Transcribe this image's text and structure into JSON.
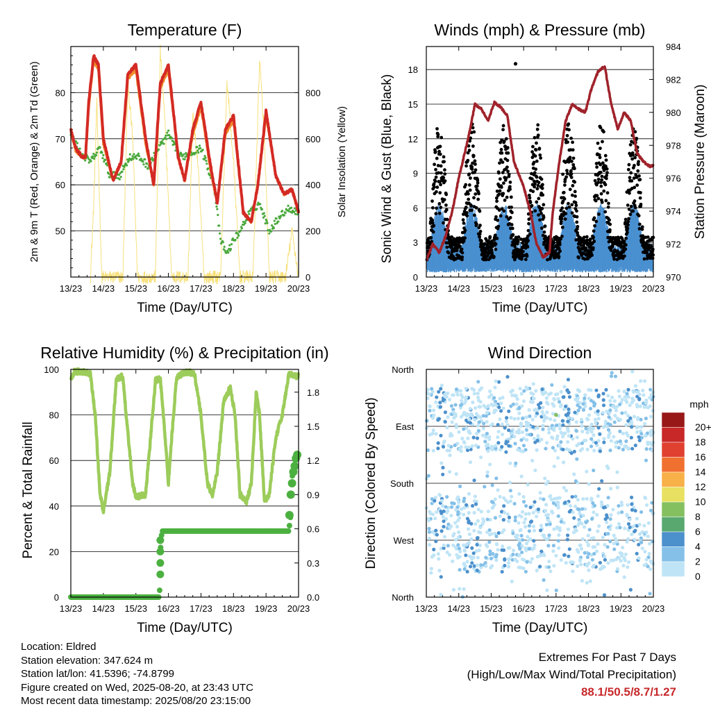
{
  "chart_data": [
    {
      "type": "line",
      "title": "Temperature (F)",
      "xlabel": "Time (Day/UTC)",
      "ylabel": "2m & 9m T (Red, Orange) & 2m Td (Green)",
      "ylabel_right": "Solar Insolation (Yellow)",
      "x_ticks": [
        "13/23",
        "14/23",
        "15/23",
        "16/23",
        "17/23",
        "18/23",
        "19/23",
        "20/23"
      ],
      "xlim": [
        0,
        7
      ],
      "ylim": [
        40,
        90
      ],
      "y_ticks": [
        50,
        60,
        70,
        80
      ],
      "ylim_right": [
        0,
        1000
      ],
      "y_ticks_right": [
        0,
        200,
        400,
        600,
        800
      ],
      "series": [
        {
          "name": "2m T",
          "color": "#d42a24",
          "x": [
            0,
            0.15,
            0.35,
            0.45,
            0.55,
            0.7,
            0.85,
            1.0,
            1.3,
            1.55,
            1.75,
            2.0,
            2.3,
            2.55,
            2.75,
            3.0,
            3.3,
            3.5,
            3.75,
            4.0,
            4.3,
            4.5,
            4.75,
            5.0,
            5.3,
            5.55,
            5.75,
            6.0,
            6.3,
            6.55,
            6.8,
            7.0
          ],
          "y": [
            72,
            68,
            66,
            66,
            78,
            88,
            86,
            70,
            61,
            65,
            84,
            86,
            70,
            60,
            82,
            86,
            66,
            61,
            72,
            78,
            64,
            56,
            72,
            75,
            54,
            52,
            60,
            76,
            62,
            58,
            59,
            54
          ]
        },
        {
          "name": "9m T",
          "color": "#f08c2a",
          "x": [
            0,
            0.15,
            0.35,
            0.45,
            0.55,
            0.7,
            0.85,
            1.0,
            1.3,
            1.55,
            1.75,
            2.0,
            2.3,
            2.55,
            2.75,
            3.0,
            3.3,
            3.5,
            3.75,
            4.0,
            4.3,
            4.5,
            4.75,
            5.0,
            5.3,
            5.55,
            5.75,
            6.0,
            6.3,
            6.55,
            6.8,
            7.0
          ],
          "y": [
            71.5,
            67.5,
            66,
            66,
            77,
            87,
            85,
            69,
            61,
            65,
            83,
            85,
            69,
            60,
            81,
            85,
            66,
            61,
            71,
            77,
            63,
            56,
            71,
            74,
            54,
            52,
            60,
            75,
            62,
            58,
            59,
            54
          ]
        },
        {
          "name": "2m Td",
          "color": "#4aa83c",
          "x": [
            0,
            0.3,
            0.6,
            0.9,
            1.2,
            1.5,
            1.8,
            2.1,
            2.4,
            2.7,
            3.0,
            3.2,
            3.4,
            3.7,
            4.0,
            4.2,
            4.4,
            4.6,
            4.8,
            5.0,
            5.2,
            5.5,
            5.8,
            6.1,
            6.4,
            6.7,
            7.0
          ],
          "y": [
            71,
            67,
            65,
            68,
            62,
            62,
            66,
            66,
            64,
            68,
            71,
            68,
            66,
            67,
            68,
            64,
            60,
            48,
            45,
            48,
            50,
            54,
            56,
            50,
            53,
            55,
            54
          ]
        },
        {
          "name": "Solar Insolation",
          "color": "#f7e07a",
          "axis": "right",
          "x": [
            0.6,
            0.7,
            0.8,
            0.95,
            1.6,
            1.75,
            1.9,
            2.05,
            2.6,
            2.75,
            2.9,
            3.1,
            3.6,
            3.75,
            3.9,
            4.1,
            4.6,
            4.8,
            5.0,
            5.2,
            5.6,
            5.8,
            5.95,
            6.1,
            6.6,
            6.8,
            7.0
          ],
          "y": [
            0,
            300,
            750,
            0,
            0,
            850,
            600,
            0,
            0,
            980,
            650,
            0,
            0,
            700,
            500,
            0,
            0,
            850,
            500,
            0,
            0,
            950,
            600,
            0,
            0,
            200,
            0
          ]
        }
      ]
    },
    {
      "type": "line",
      "title": "Winds (mph) & Pressure (mb)",
      "xlabel": "Time (Day/UTC)",
      "ylabel": "Sonic Wind & Gust (Blue, Black)",
      "ylabel_right": "Station Pressure (Maroon)",
      "x_ticks": [
        "13/23",
        "14/23",
        "15/23",
        "16/23",
        "17/23",
        "18/23",
        "19/23",
        "20/23"
      ],
      "xlim": [
        0,
        7
      ],
      "ylim": [
        0,
        20
      ],
      "y_ticks": [
        0,
        3,
        6,
        9,
        12,
        15,
        18
      ],
      "ylim_right": [
        970,
        984
      ],
      "y_ticks_right": [
        970,
        972,
        974,
        976,
        978,
        980,
        982,
        984
      ],
      "series": [
        {
          "name": "Station Pressure",
          "color": "#a0222a",
          "axis": "right",
          "x": [
            0,
            0.2,
            0.4,
            0.6,
            0.8,
            1.0,
            1.3,
            1.5,
            1.7,
            1.9,
            2.1,
            2.3,
            2.5,
            2.7,
            2.9,
            3.0,
            3.2,
            3.4,
            3.6,
            3.8,
            3.9,
            4.1,
            4.3,
            4.5,
            4.7,
            4.9,
            5.1,
            5.3,
            5.5,
            5.7,
            5.9,
            6.1,
            6.3,
            6.5,
            6.7,
            6.9,
            7.0
          ],
          "y": [
            971,
            972,
            971.5,
            972.5,
            974,
            976,
            978.5,
            980.5,
            980.2,
            979.5,
            980.6,
            980.3,
            979.8,
            977,
            976,
            975.5,
            974,
            972,
            971.2,
            971.5,
            974,
            977,
            979.5,
            980.5,
            980.2,
            980,
            981.5,
            982.5,
            982.8,
            980.5,
            979,
            980,
            979.5,
            977.5,
            977,
            976.7,
            976.8
          ]
        },
        {
          "name": "Sonic Wind",
          "color": "#4a90d0",
          "kind": "band"
        },
        {
          "name": "Gust",
          "color": "#000000",
          "kind": "points"
        }
      ],
      "gust_max": 18.5
    },
    {
      "type": "line",
      "title": "Relative Humidity (%) & Precipitation (in)",
      "xlabel": "Time (Day/UTC)",
      "ylabel": "Percent & Total Rainfall",
      "x_ticks": [
        "13/23",
        "14/23",
        "15/23",
        "16/23",
        "17/23",
        "18/23",
        "19/23",
        "20/23"
      ],
      "xlim": [
        0,
        7
      ],
      "ylim": [
        0,
        100
      ],
      "y_ticks": [
        0,
        20,
        40,
        60,
        80,
        100
      ],
      "ylim_right": [
        0,
        2
      ],
      "y_ticks_right": [
        "0.0",
        "0.3",
        "0.6",
        "0.9",
        "1.2",
        "1.5",
        "1.8"
      ],
      "series": [
        {
          "name": "Relative Humidity",
          "color": "#9ccc5a",
          "x": [
            0,
            0.1,
            0.4,
            0.6,
            0.75,
            0.9,
            1.0,
            1.2,
            1.4,
            1.6,
            1.7,
            1.9,
            2.0,
            2.3,
            2.45,
            2.6,
            2.75,
            2.9,
            3.0,
            3.1,
            3.25,
            3.4,
            3.6,
            3.8,
            4.0,
            4.2,
            4.35,
            4.5,
            4.7,
            4.9,
            5.05,
            5.2,
            5.4,
            5.55,
            5.7,
            5.8,
            5.95,
            6.1,
            6.3,
            6.5,
            6.7,
            6.9,
            7.0
          ],
          "y": [
            96,
            99,
            99,
            98,
            80,
            45,
            38,
            55,
            96,
            97,
            80,
            50,
            44,
            45,
            70,
            95,
            96,
            70,
            50,
            70,
            96,
            98,
            99,
            98,
            80,
            50,
            45,
            55,
            86,
            92,
            80,
            45,
            42,
            50,
            90,
            80,
            42,
            45,
            70,
            80,
            98,
            97,
            97
          ]
        },
        {
          "name": "Total Rainfall",
          "color": "#4cb040",
          "axis": "right",
          "x": [
            0,
            2.7,
            2.75,
            2.75,
            2.8,
            6.7,
            6.75,
            6.8,
            6.9,
            7.0
          ],
          "y": [
            0,
            0,
            0.1,
            0.4,
            0.58,
            0.58,
            0.7,
            1.05,
            1.2,
            1.25
          ]
        }
      ]
    },
    {
      "type": "scatter",
      "title": "Wind Direction",
      "xlabel": "Time (Day/UTC)",
      "ylabel": "Direction (Colored By Speed)",
      "x_ticks": [
        "13/23",
        "14/23",
        "15/23",
        "16/23",
        "17/23",
        "18/23",
        "19/23",
        "20/23"
      ],
      "xlim": [
        0,
        7
      ],
      "ylim": [
        0,
        360
      ],
      "y_tick_labels": [
        "North",
        "East",
        "South",
        "West",
        "North"
      ],
      "colorbar": {
        "title": "mph",
        "labels": [
          "0",
          "2",
          "4",
          "6",
          "8",
          "10",
          "12",
          "14",
          "16",
          "18",
          "20+"
        ],
        "colors": [
          "#bfe4f6",
          "#84c0e8",
          "#4c90cc",
          "#58a870",
          "#84c060",
          "#e8e060",
          "#f8b048",
          "#f07030",
          "#e04030",
          "#c82828",
          "#981818"
        ]
      }
    }
  ],
  "station": {
    "location": "Location: Eldred",
    "elevation": "Station elevation: 347.624 m",
    "latlon": "Station lat/lon: 41.5396; -74.8799",
    "created": "Figure created on Wed, 2025-08-20, at 23:43 UTC",
    "recent": "Most recent data timestamp: 2025/08/20 23:15:00"
  },
  "extremes": {
    "title": "Extremes For Past 7 Days",
    "subtitle": "(High/Low/Max Wind/Total Precipitation)",
    "values": "88.1/50.5/8.7/1.27"
  }
}
